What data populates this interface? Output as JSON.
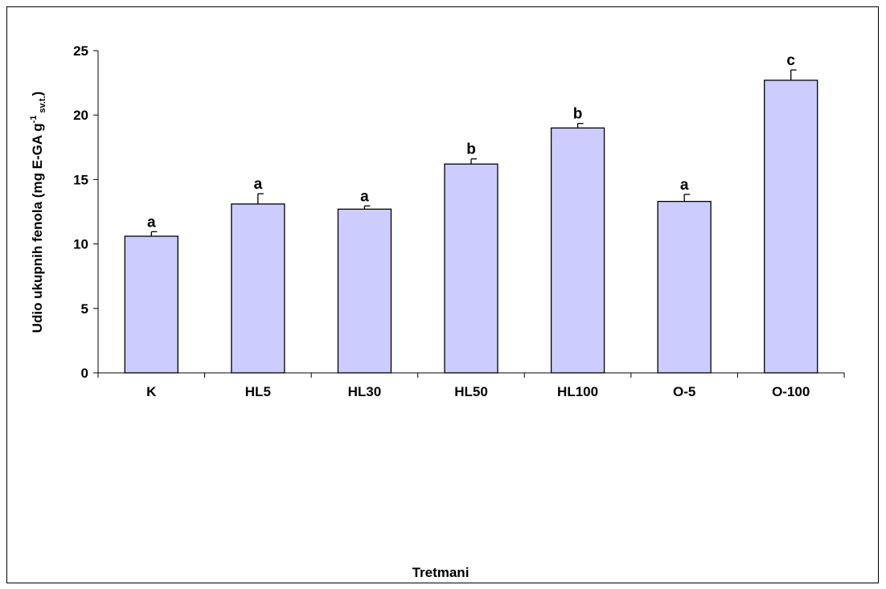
{
  "chart_data": {
    "type": "bar",
    "xlabel": "Tretmani",
    "ylabel": {
      "main": "Udio ukupnih fenola (mg E-GA g",
      "sup": "-1",
      "sub": "sv.t.",
      "close": ")"
    },
    "ylim": [
      0,
      25
    ],
    "yticks": [
      0,
      5,
      10,
      15,
      20,
      25
    ],
    "ytick_labels": [
      "0",
      "5",
      "10",
      "15",
      "20",
      "25"
    ],
    "categories": [
      "K",
      "HL5",
      "HL30",
      "HL50",
      "HL100",
      "O-5",
      "O-100"
    ],
    "values": [
      10.6,
      13.1,
      12.7,
      16.2,
      19.0,
      13.3,
      22.7
    ],
    "errors": [
      0.35,
      0.8,
      0.25,
      0.4,
      0.35,
      0.55,
      0.8
    ],
    "significance": [
      "a",
      "a",
      "a",
      "b",
      "b",
      "a",
      "c"
    ],
    "grid": false,
    "bar_color": "#ccccff",
    "bar_edge": "#000000"
  }
}
